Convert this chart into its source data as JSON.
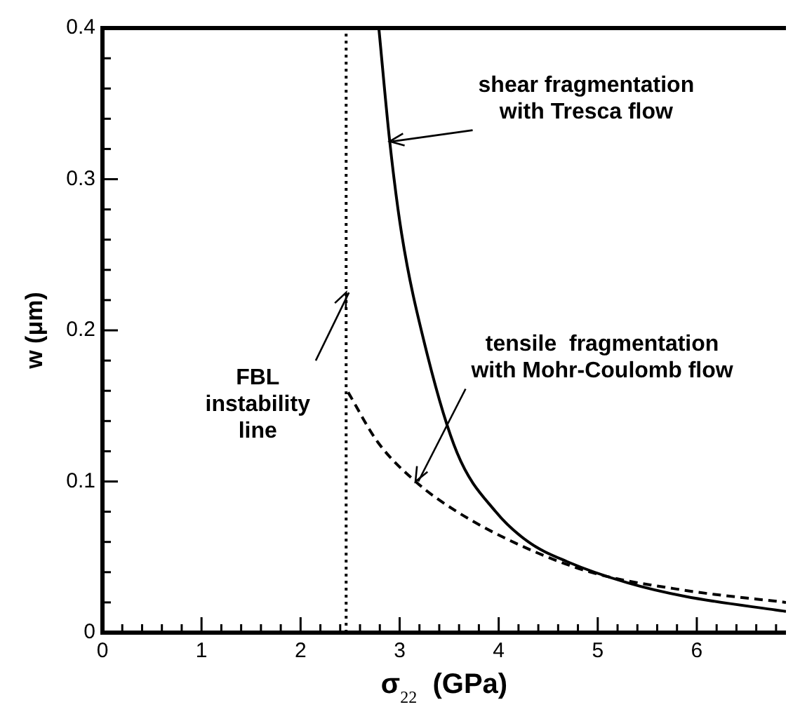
{
  "chart_data": {
    "type": "line",
    "xlabel": "σ$_{22}$  (GPa)",
    "ylabel": "w (μm)",
    "xlim": [
      0,
      6.9
    ],
    "xticks": [
      0,
      {
        "value": 0.2,
        "label": null
      },
      {
        "value": 0.4,
        "label": null
      },
      {
        "value": 0.6,
        "label": null
      },
      {
        "value": 0.8,
        "label": null
      },
      1,
      {
        "value": 1.2,
        "label": null
      },
      {
        "value": 1.4,
        "label": null
      },
      {
        "value": 1.6,
        "label": null
      },
      {
        "value": 1.8,
        "label": null
      },
      2,
      {
        "value": 2.2,
        "label": null
      },
      {
        "value": 2.4,
        "label": null
      },
      {
        "value": 2.6,
        "label": null
      },
      {
        "value": 2.8,
        "label": null
      },
      3,
      {
        "value": 3.2,
        "label": null
      },
      {
        "value": 3.4,
        "label": null
      },
      {
        "value": 3.6,
        "label": null
      },
      {
        "value": 3.8,
        "label": null
      },
      4,
      {
        "value": 4.2,
        "label": null
      },
      {
        "value": 4.4,
        "label": null
      },
      {
        "value": 4.6,
        "label": null
      },
      {
        "value": 4.8,
        "label": null
      },
      5,
      {
        "value": 5.2,
        "label": null
      },
      {
        "value": 5.4,
        "label": null
      },
      {
        "value": 5.6,
        "label": null
      },
      {
        "value": 5.8,
        "label": null
      },
      6,
      {
        "value": 6.2,
        "label": null
      },
      {
        "value": 6.4,
        "label": null
      },
      {
        "value": 6.6,
        "label": null
      },
      {
        "value": 6.8,
        "label": null
      }
    ],
    "ylim": [
      0,
      0.4
    ],
    "yticks": [
      0,
      {
        "value": 0.02,
        "label": null
      },
      {
        "value": 0.04,
        "label": null
      },
      {
        "value": 0.06,
        "label": null
      },
      {
        "value": 0.08,
        "label": null
      },
      0.1,
      {
        "value": 0.12,
        "label": null
      },
      {
        "value": 0.14,
        "label": null
      },
      {
        "value": 0.16,
        "label": null
      },
      {
        "value": 0.18,
        "label": null
      },
      0.2,
      {
        "value": 0.22,
        "label": null
      },
      {
        "value": 0.24,
        "label": null
      },
      {
        "value": 0.26,
        "label": null
      },
      {
        "value": 0.28,
        "label": null
      },
      0.3,
      {
        "value": 0.32,
        "label": null
      },
      {
        "value": 0.34,
        "label": null
      },
      {
        "value": 0.36,
        "label": null
      },
      {
        "value": 0.38,
        "label": null
      },
      0.4
    ],
    "grid": false,
    "legend": false,
    "marker": "none",
    "series": [
      {
        "color": "#000000",
        "line_style": "solid",
        "x": [
          2.79,
          2.9,
          3.02,
          3.26,
          3.58,
          3.97,
          4.3,
          4.69,
          5.3,
          5.88,
          6.9
        ],
        "values": [
          0.4,
          0.325,
          0.264,
          0.189,
          0.119,
          0.08,
          0.06,
          0.047,
          0.033,
          0.024,
          0.014
        ]
      },
      {
        "color": "#000000",
        "line_style": "dashed",
        "x": [
          2.48,
          2.78,
          3.16,
          3.58,
          4.21,
          4.93,
          5.88,
          6.9
        ],
        "values": [
          0.159,
          0.126,
          0.1,
          0.08,
          0.058,
          0.04,
          0.028,
          0.02
        ]
      }
    ],
    "ref_lines": [
      {
        "axis": "x",
        "value": 2.46,
        "color": "#000000",
        "line_style": "dotted"
      }
    ],
    "annotations": [
      {
        "text": "shear fragmentation\nwith Tresca flow",
        "x": 2.9,
        "y": 0.325
      },
      {
        "text": "FBL\ninstability\nline",
        "x": 2.46,
        "y": 0.225
      },
      {
        "text": "tensile  fragmentation\nwith Mohr-Coulomb flow",
        "x": 3.16,
        "y": 0.1
      }
    ]
  }
}
